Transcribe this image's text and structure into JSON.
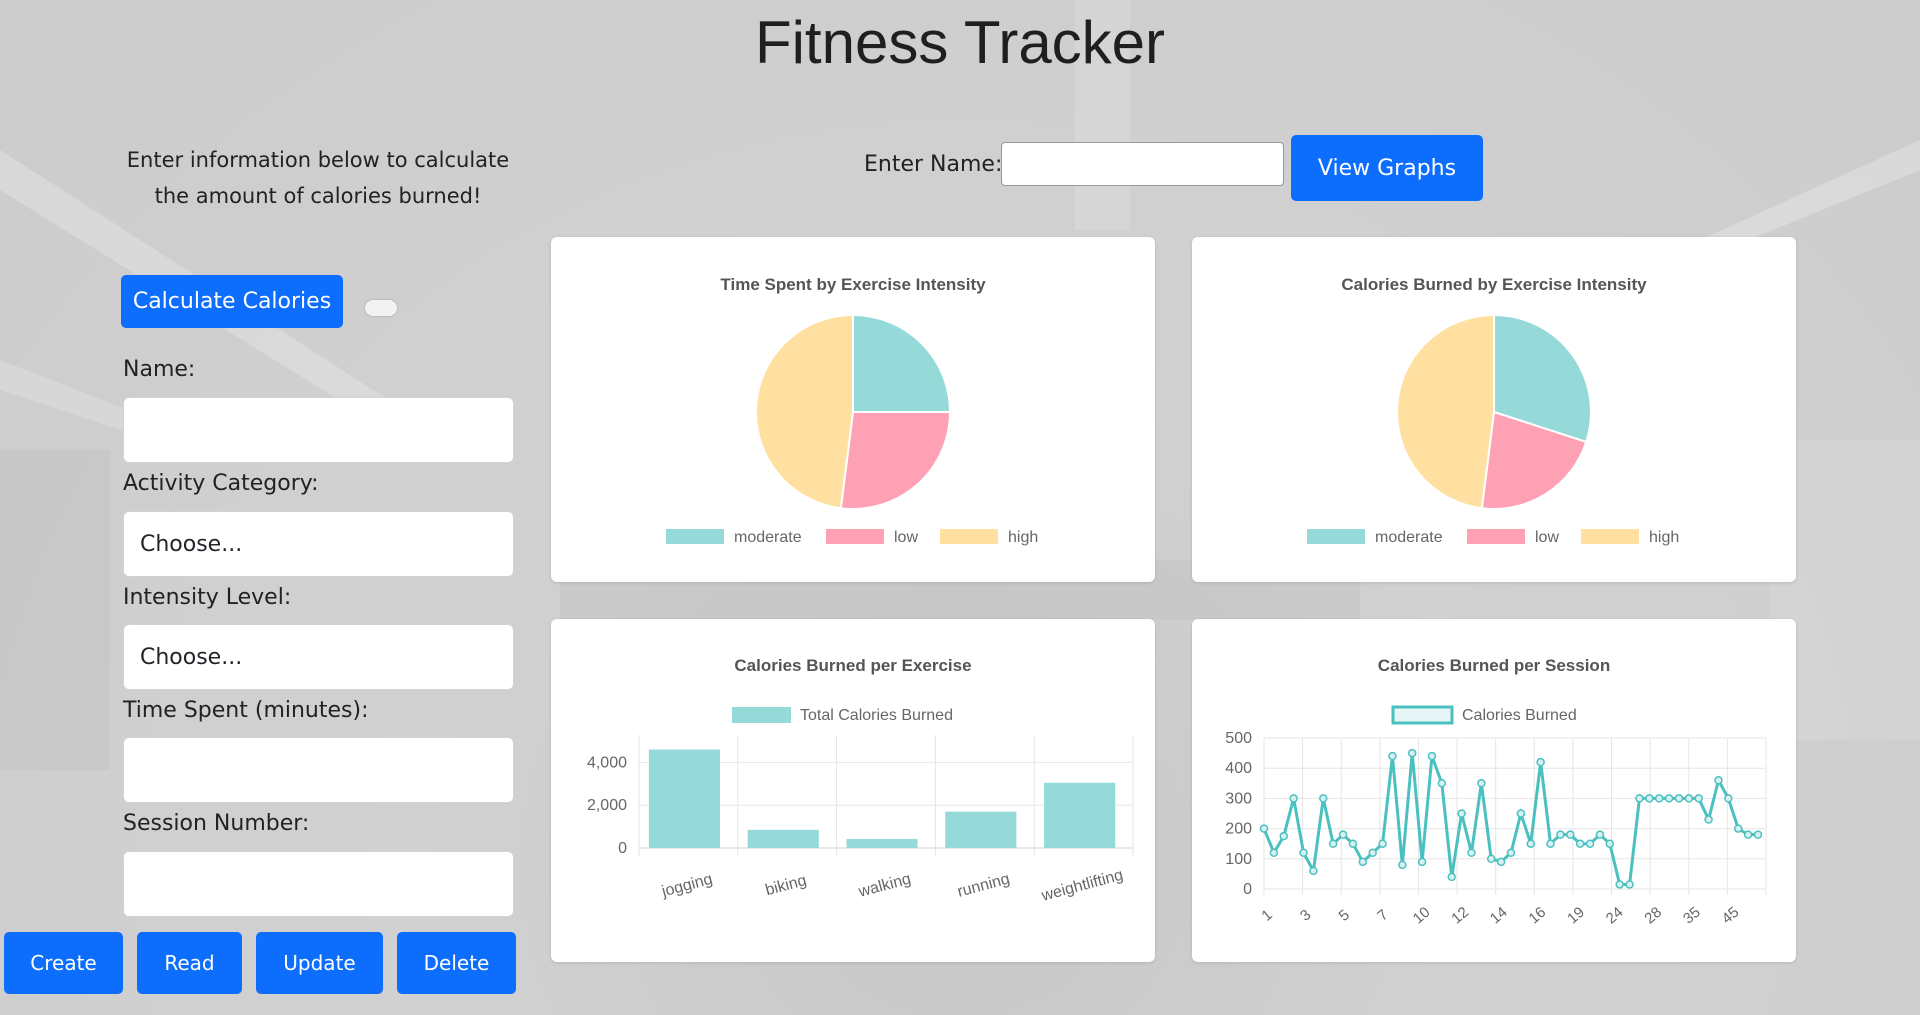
{
  "page": {
    "title": "Fitness Tracker"
  },
  "intro": {
    "line1": "Enter information below to calculate",
    "line2": "the amount of calories burned!"
  },
  "calculator": {
    "button_label": "Calculate Calories"
  },
  "form": {
    "name_label": "Name:",
    "activity_label": "Activity Category:",
    "activity_value": "Choose...",
    "intensity_label": "Intensity Level:",
    "intensity_value": "Choose...",
    "time_label": "Time Spent (minutes):",
    "session_label": "Session Number:"
  },
  "crud": {
    "create": "Create",
    "read": "Read",
    "update": "Update",
    "delete": "Delete"
  },
  "lookup": {
    "name_label": "Enter Name:",
    "view_button": "View Graphs"
  },
  "colors": {
    "teal": "#4bc0c0",
    "teal_fill": "#96d9d9",
    "pink": "#ffa1b5",
    "yellow": "#ffe0a0",
    "primary": "#0d6efd"
  },
  "chart_data": [
    {
      "type": "pie",
      "title": "Time Spent by Exercise Intensity",
      "labels": [
        "moderate",
        "low",
        "high"
      ],
      "values": [
        25,
        27,
        48
      ]
    },
    {
      "type": "pie",
      "title": "Calories Burned by Exercise Intensity",
      "labels": [
        "moderate",
        "low",
        "high"
      ],
      "values": [
        30,
        22,
        48
      ]
    },
    {
      "type": "bar",
      "title": "Calories Burned per Exercise",
      "legend": "Total Calories Burned",
      "categories": [
        "jogging",
        "biking",
        "walking",
        "running",
        "weightlifting"
      ],
      "values": [
        4600,
        850,
        420,
        1700,
        3050
      ],
      "yticks": [
        "0",
        "2,000",
        "4,000"
      ],
      "ylim": [
        0,
        5000
      ]
    },
    {
      "type": "line",
      "title": "Calories Burned per Session",
      "legend": "Calories Burned",
      "xticks": [
        "1",
        "3",
        "5",
        "7",
        "10",
        "12",
        "14",
        "16",
        "19",
        "24",
        "28",
        "35",
        "45"
      ],
      "yticks": [
        "0",
        "100",
        "200",
        "300",
        "400",
        "500"
      ],
      "ylim": [
        0,
        500
      ],
      "values": [
        200,
        120,
        175,
        300,
        120,
        60,
        300,
        150,
        180,
        150,
        90,
        120,
        150,
        440,
        80,
        450,
        90,
        440,
        350,
        40,
        250,
        120,
        350,
        100,
        90,
        120,
        250,
        150,
        420,
        150,
        180,
        180,
        150,
        150,
        180,
        150,
        15,
        15,
        300,
        300,
        300,
        300,
        300,
        300,
        300,
        230,
        360,
        300,
        200,
        180,
        180
      ]
    }
  ]
}
